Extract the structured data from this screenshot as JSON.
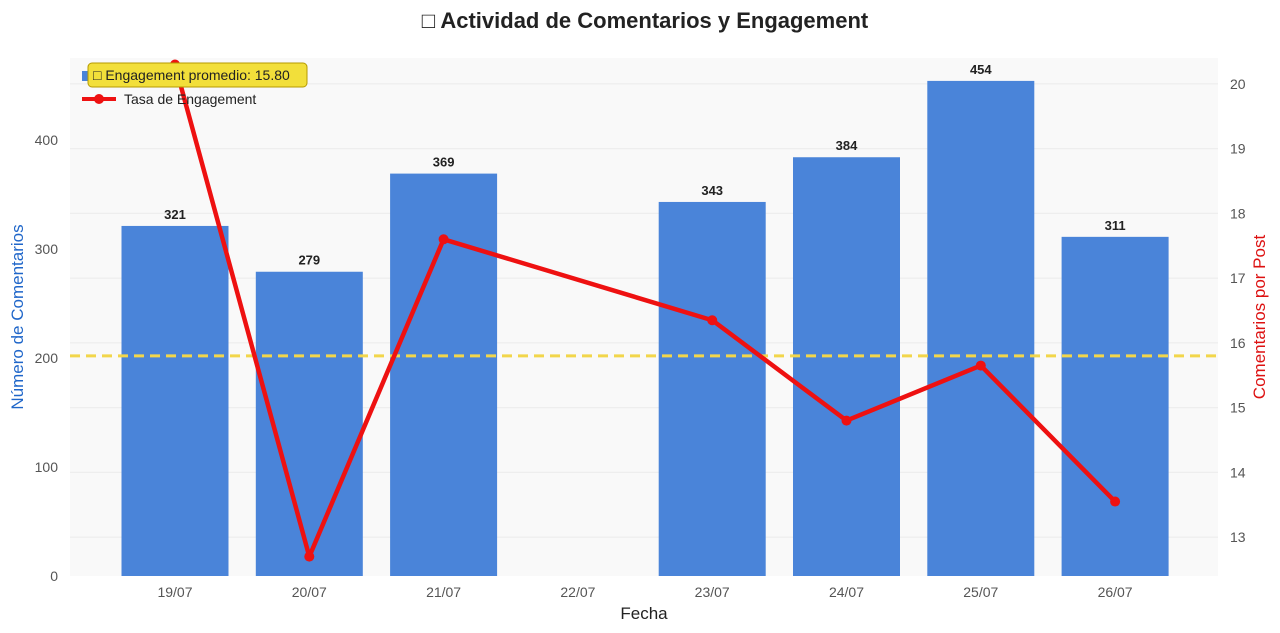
{
  "chart_data": {
    "type": "bar",
    "title": "□ Actividad de Comentarios y Engagement",
    "xlabel": "Fecha",
    "ylabel_left": "Número de Comentarios",
    "ylabel_right": "Comentarios por Post",
    "categories": [
      "19/07",
      "20/07",
      "21/07",
      "22/07",
      "23/07",
      "24/07",
      "25/07",
      "26/07"
    ],
    "ylim_left": [
      0,
      475
    ],
    "yticks_left": [
      0,
      100,
      200,
      300,
      400
    ],
    "ylim_right": [
      12.4,
      20.4
    ],
    "yticks_right": [
      13,
      14,
      15,
      16,
      17,
      18,
      19,
      20
    ],
    "series": [
      {
        "name": "Comentarios",
        "type": "bar",
        "axis": "left",
        "color": "#4a84d9",
        "values": [
          321,
          279,
          369,
          null,
          343,
          384,
          454,
          311
        ]
      },
      {
        "name": "Tasa de Engagement",
        "type": "line",
        "axis": "right",
        "color": "#ee1111",
        "values": [
          20.3,
          12.7,
          17.6,
          null,
          16.35,
          14.8,
          15.65,
          13.55
        ]
      }
    ],
    "average_line": {
      "value": 15.8,
      "axis": "right",
      "color": "#f2d64b",
      "label": "□ Engagement promedio: 15.80"
    },
    "grid": true,
    "legend_position": "top-left"
  }
}
